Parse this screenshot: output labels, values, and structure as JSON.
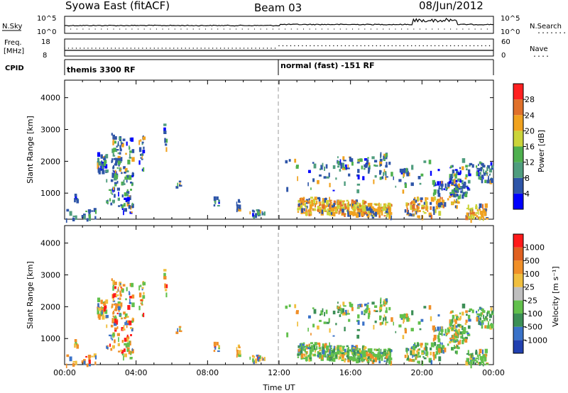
{
  "header": {
    "station": "Syowa East (fitACF)",
    "beam": "Beam 03",
    "date": "08/Jun/2012"
  },
  "noise_panel": {
    "left_label": "N.Sky",
    "left_ticks": [
      "10^5",
      "10^0"
    ],
    "right_ticks": [
      "10^5",
      "10^0"
    ],
    "right_label": "N.Search",
    "right_label_dots": "........"
  },
  "freq_panel": {
    "left_label_1": "Freq.",
    "left_label_2": "[MHz]",
    "left_ticks": [
      "18",
      "8"
    ],
    "right_ticks": [
      "60",
      "0"
    ],
    "right_label": "Nave",
    "right_label_dots": "...."
  },
  "cpid_panel": {
    "label": "CPID",
    "programs": [
      "themis 3300 RF",
      "normal (fast) -151 RF"
    ]
  },
  "colors": {
    "power_scale": [
      "#0000ff",
      "#2e55a8",
      "#4f9d7e",
      "#4fb04f",
      "#cbd43a",
      "#f0a21f",
      "#e0702a",
      "#ff2020"
    ],
    "velocity_scale": [
      "#2140b0",
      "#3a72c8",
      "#3c8f56",
      "#62c04c",
      "#bfbfbf",
      "#f0bf3f",
      "#f08f28",
      "#e06020",
      "#ff1a1a"
    ]
  },
  "chart_data": [
    {
      "type": "heatmap",
      "title": "",
      "ylabel": "Slant Range [km]",
      "yticks": [
        "1000",
        "2000",
        "3000",
        "4000"
      ],
      "ylim": [
        180,
        4550
      ],
      "xlim_hours": [
        0,
        24
      ],
      "colorbar_label": "Power [dB]",
      "colorbar_ticks": [
        "4",
        "8",
        "12",
        "16",
        "20",
        "24",
        "28"
      ],
      "colorbar_range": [
        0,
        32
      ]
    },
    {
      "type": "heatmap",
      "title": "",
      "ylabel": "Slant Range [km]",
      "yticks": [
        "1000",
        "2000",
        "3000",
        "4000"
      ],
      "ylim": [
        180,
        4550
      ],
      "xlim_hours": [
        0,
        24
      ],
      "colorbar_label": "Velocity [m s⁻¹]",
      "colorbar_ticks": [
        "1000",
        "500",
        "100",
        "25",
        "-25",
        "-100",
        "-500",
        "-1000"
      ],
      "xticks": [
        "00:00",
        "04:00",
        "08:00",
        "12:00",
        "16:00",
        "20:00",
        "00:00"
      ],
      "xlabel": "Time UT"
    }
  ]
}
